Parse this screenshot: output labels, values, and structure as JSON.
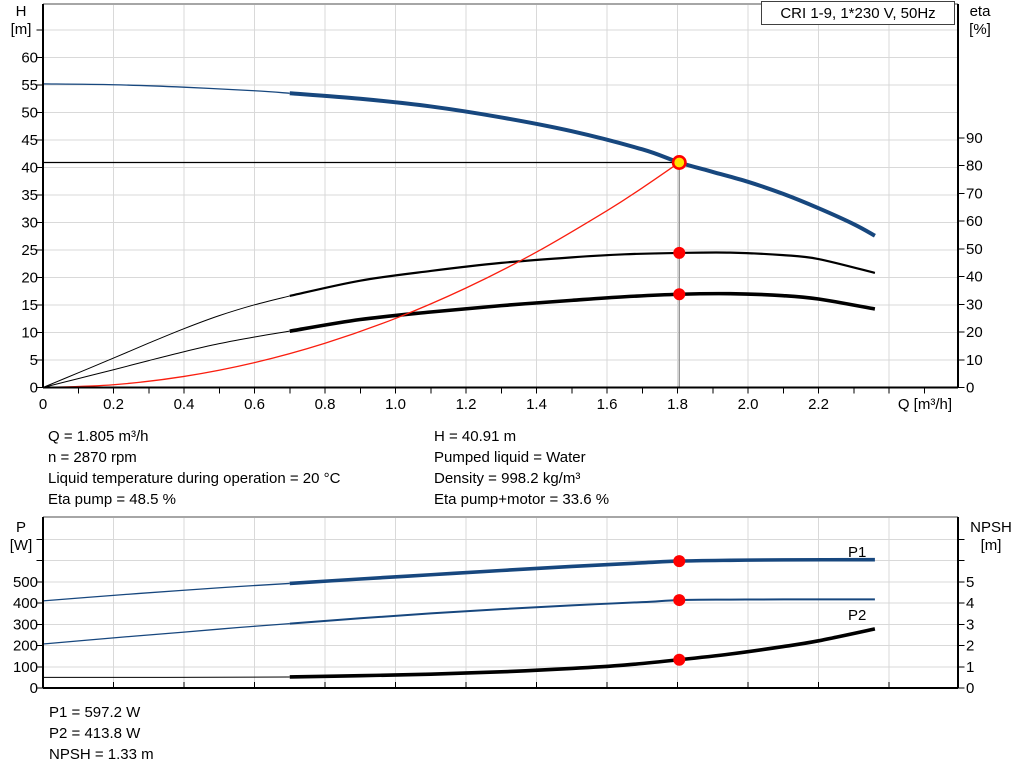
{
  "title_box": {
    "label": "CRI 1-9, 1*230 V, 50Hz"
  },
  "axes": {
    "h": {
      "title_line1": "H",
      "title_line2": "[m]"
    },
    "eta": {
      "title_line1": "eta",
      "title_line2": "[%]"
    },
    "q": {
      "title": "Q [m³/h]"
    },
    "p": {
      "title_line1": "P",
      "title_line2": "[W]"
    },
    "npsh": {
      "title_line1": "NPSH",
      "title_line2": "[m]"
    }
  },
  "curve_labels": {
    "p1": "P1",
    "p2": "P2"
  },
  "operating_point_text": {
    "left": [
      "Q = 1.805 m³/h",
      "n = 2870 rpm",
      "Liquid temperature during operation = 20 °C",
      "Eta pump = 48.5 %"
    ],
    "right": [
      "H = 40.91 m",
      "Pumped liquid = Water",
      "Density = 998.2 kg/m³",
      "Eta pump+motor = 33.6 %"
    ],
    "bottom": [
      "P1 = 597.2 W",
      "P2 = 413.8 W",
      "NPSH = 1.33 m"
    ]
  },
  "colors": {
    "blue": "#17477E",
    "black": "#000000",
    "red": "#FA1E0F",
    "dot_red": "#FF0000",
    "dot_yellow": "#FFE100",
    "grid": "#D9D9D9",
    "border_gray": "#A6A6A6",
    "op_line_gray": "#8C8C8C"
  },
  "chart_data": [
    {
      "name": "head-and-efficiency-chart",
      "type": "line",
      "title": "CRI 1-9, 1*230 V, 50Hz",
      "x_axis": {
        "label": "Q [m³/h]",
        "range": [
          0,
          2.6
        ],
        "tick_labels": [
          "0",
          "0.2",
          "0.4",
          "0.6",
          "0.8",
          "1.0",
          "1.2",
          "1.4",
          "1.6",
          "1.8",
          "2.0",
          "2.2"
        ]
      },
      "left_axis": {
        "label": "H [m]",
        "range": [
          0,
          70
        ],
        "tick_labels": [
          60,
          55,
          50,
          45,
          40,
          35,
          30,
          25,
          20,
          15,
          10,
          5,
          0
        ]
      },
      "right_axis": {
        "label": "eta [%]",
        "range": [
          0,
          138
        ],
        "tick_labels": [
          90,
          80,
          70,
          60,
          50,
          40,
          30,
          20,
          10,
          0
        ]
      },
      "grid": true,
      "series": [
        {
          "name": "pump-head-curve",
          "axis": "H",
          "thin": [
            [
              0,
              55.2
            ],
            [
              0.2,
              55.05
            ],
            [
              0.4,
              54.6
            ],
            [
              0.6,
              53.95
            ],
            [
              0.7,
              53.5
            ]
          ],
          "thick": [
            [
              0.7,
              53.5
            ],
            [
              0.9,
              52.5
            ],
            [
              1.1,
              51.1
            ],
            [
              1.3,
              49.1
            ],
            [
              1.5,
              46.6
            ],
            [
              1.7,
              43.3
            ],
            [
              1.805,
              40.91
            ],
            [
              1.9,
              39.2
            ],
            [
              2.0,
              37.4
            ],
            [
              2.1,
              35.2
            ],
            [
              2.2,
              32.6
            ],
            [
              2.3,
              29.7
            ],
            [
              2.36,
              27.6
            ]
          ]
        },
        {
          "name": "eta-pump-curve",
          "axis": "eta",
          "thin": [
            [
              0,
              0
            ],
            [
              0.1,
              5.3
            ],
            [
              0.2,
              10.6
            ],
            [
              0.3,
              16.0
            ],
            [
              0.4,
              21.2
            ],
            [
              0.5,
              25.9
            ],
            [
              0.6,
              29.8
            ],
            [
              0.7,
              33.0
            ]
          ],
          "thick": [
            [
              0.7,
              33.0
            ],
            [
              0.9,
              38.5
            ],
            [
              1.1,
              42.0
            ],
            [
              1.3,
              44.9
            ],
            [
              1.5,
              46.9
            ],
            [
              1.65,
              48.0
            ],
            [
              1.805,
              48.5
            ],
            [
              1.95,
              48.6
            ],
            [
              2.1,
              47.7
            ],
            [
              2.2,
              46.3
            ],
            [
              2.36,
              41.3
            ]
          ]
        },
        {
          "name": "eta-pump-motor-curve",
          "axis": "eta",
          "thin": [
            [
              0,
              0
            ],
            [
              0.1,
              3.2
            ],
            [
              0.2,
              6.4
            ],
            [
              0.3,
              9.7
            ],
            [
              0.4,
              12.9
            ],
            [
              0.5,
              15.8
            ],
            [
              0.6,
              18.2
            ],
            [
              0.7,
              20.3
            ]
          ],
          "thick": [
            [
              0.7,
              20.3
            ],
            [
              0.9,
              24.5
            ],
            [
              1.1,
              27.2
            ],
            [
              1.3,
              29.5
            ],
            [
              1.5,
              31.4
            ],
            [
              1.65,
              32.7
            ],
            [
              1.805,
              33.6
            ],
            [
              1.95,
              33.8
            ],
            [
              2.1,
              33.1
            ],
            [
              2.2,
              31.9
            ],
            [
              2.36,
              28.3
            ]
          ]
        },
        {
          "name": "system-curve",
          "axis": "H",
          "thin": [
            [
              0,
              0
            ],
            [
              0.2,
              0.5
            ],
            [
              0.4,
              2.01
            ],
            [
              0.6,
              4.52
            ],
            [
              0.8,
              8.04
            ],
            [
              1.0,
              12.56
            ],
            [
              1.2,
              18.09
            ],
            [
              1.4,
              24.62
            ],
            [
              1.6,
              32.15
            ],
            [
              1.7,
              36.29
            ],
            [
              1.805,
              40.91
            ]
          ],
          "thick": []
        }
      ],
      "guide_lines": [
        {
          "type": "h",
          "axis": "H",
          "value": 40.91,
          "q_from": 0,
          "q_to": 1.805,
          "color": "black",
          "width": 1.2
        },
        {
          "type": "v",
          "q": 1.805,
          "axis": "H",
          "from": 40.91,
          "to": 0,
          "color": "op_line_gray",
          "width": 1.3
        }
      ],
      "operating_point": {
        "Q": 1.805,
        "H": 40.91,
        "eta_pump": 48.5,
        "eta_pump_motor": 33.6
      }
    },
    {
      "name": "power-and-npsh-chart",
      "type": "line",
      "x_axis": {
        "label": "",
        "range": [
          0,
          2.6
        ],
        "tick_labels": []
      },
      "left_axis": {
        "label": "P [W]",
        "range": [
          0,
          805
        ],
        "tick_labels": [
          500,
          400,
          300,
          200,
          100,
          0
        ]
      },
      "right_axis": {
        "label": "NPSH [m]",
        "range": [
          0,
          8
        ],
        "tick_labels": [
          5,
          4,
          3,
          2,
          1,
          0
        ]
      },
      "grid": true,
      "series": [
        {
          "name": "p1-curve",
          "axis": "P",
          "thin": [
            [
              0,
              410
            ],
            [
              0.2,
              436
            ],
            [
              0.4,
              460
            ],
            [
              0.55,
              477
            ],
            [
              0.7,
              492
            ]
          ],
          "thick": [
            [
              0.7,
              492
            ],
            [
              0.9,
              513
            ],
            [
              1.1,
              533
            ],
            [
              1.3,
              553
            ],
            [
              1.5,
              572
            ],
            [
              1.7,
              589
            ],
            [
              1.805,
              597.2
            ],
            [
              1.95,
              601
            ],
            [
              2.1,
              603
            ],
            [
              2.36,
              604
            ]
          ]
        },
        {
          "name": "p2-curve",
          "axis": "P",
          "thin": [
            [
              0,
              207
            ],
            [
              0.2,
              236
            ],
            [
              0.4,
              263
            ],
            [
              0.55,
              284
            ],
            [
              0.7,
              303
            ]
          ],
          "thick": [
            [
              0.7,
              303
            ],
            [
              0.9,
              328
            ],
            [
              1.1,
              351
            ],
            [
              1.3,
              371
            ],
            [
              1.5,
              389
            ],
            [
              1.7,
              404
            ],
            [
              1.805,
              413.8
            ],
            [
              1.95,
              416
            ],
            [
              2.1,
              417
            ],
            [
              2.36,
              417
            ]
          ]
        },
        {
          "name": "npsh-curve",
          "axis": "NPSH",
          "thin": [
            [
              0,
              0.5
            ],
            [
              0.35,
              0.5
            ],
            [
              0.7,
              0.52
            ]
          ],
          "thick": [
            [
              0.7,
              0.52
            ],
            [
              0.9,
              0.58
            ],
            [
              1.1,
              0.65
            ],
            [
              1.3,
              0.76
            ],
            [
              1.5,
              0.92
            ],
            [
              1.65,
              1.08
            ],
            [
              1.805,
              1.33
            ],
            [
              1.95,
              1.6
            ],
            [
              2.1,
              1.95
            ],
            [
              2.2,
              2.22
            ],
            [
              2.36,
              2.78
            ]
          ]
        }
      ],
      "guide_lines": [],
      "operating_point": {
        "Q": 1.805,
        "P1": 597.2,
        "P2": 413.8,
        "NPSH": 1.33
      }
    }
  ],
  "dots": [
    {
      "chart": 0,
      "axis": "H",
      "q": 1.805,
      "value": 40.91,
      "kind": "duty",
      "name": "duty-point-dot"
    },
    {
      "chart": 0,
      "axis": "eta",
      "q": 1.805,
      "value": 48.5,
      "kind": "point",
      "name": "eta-pump-dot"
    },
    {
      "chart": 0,
      "axis": "eta",
      "q": 1.805,
      "value": 33.6,
      "kind": "point",
      "name": "eta-pump-motor-dot"
    },
    {
      "chart": 1,
      "axis": "P",
      "q": 1.805,
      "value": 597.2,
      "kind": "point",
      "name": "p1-dot"
    },
    {
      "chart": 1,
      "axis": "P",
      "q": 1.805,
      "value": 413.8,
      "kind": "point",
      "name": "p2-dot"
    },
    {
      "chart": 1,
      "axis": "NPSH",
      "q": 1.805,
      "value": 1.33,
      "kind": "point",
      "name": "npsh-dot"
    }
  ]
}
